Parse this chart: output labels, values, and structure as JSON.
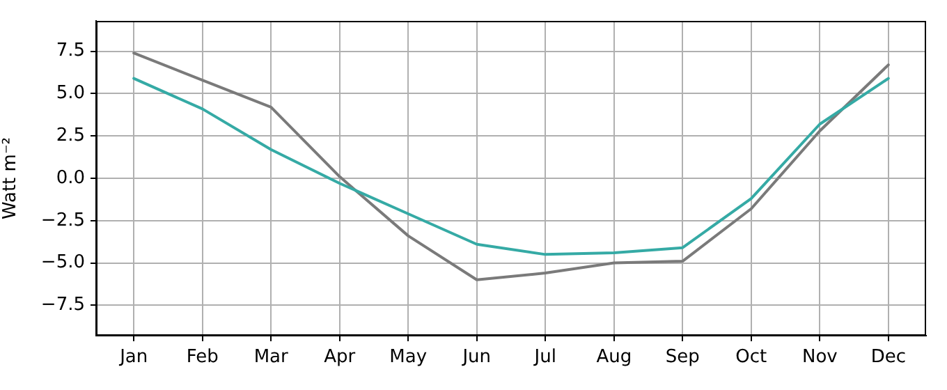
{
  "chart_data": {
    "type": "line",
    "ylabel": "Watt m⁻²",
    "categories": [
      "Jan",
      "Feb",
      "Mar",
      "Apr",
      "May",
      "Jun",
      "Jul",
      "Aug",
      "Sep",
      "Oct",
      "Nov",
      "Dec"
    ],
    "ylim": [
      -9.3,
      9.3
    ],
    "yticks": [
      {
        "value": -7.5,
        "label": "−7.5"
      },
      {
        "value": -5,
        "label": "−5.0"
      },
      {
        "value": -2.5,
        "label": "−2.5"
      },
      {
        "value": 0,
        "label": "0.0"
      },
      {
        "value": 2.5,
        "label": "2.5"
      },
      {
        "value": 5,
        "label": "5.0"
      },
      {
        "value": 7.5,
        "label": "7.5"
      }
    ],
    "grid": true,
    "series": [
      {
        "color": "#7a7a7a",
        "values": [
          7.4,
          5.8,
          4.2,
          0.1,
          -3.4,
          -6.0,
          -5.6,
          -5.0,
          -4.9,
          -1.8,
          2.8,
          6.7
        ]
      },
      {
        "color": "#35aaa5",
        "values": [
          5.9,
          4.1,
          1.7,
          -0.3,
          -2.1,
          -3.9,
          -4.5,
          -4.4,
          -4.1,
          -1.2,
          3.2,
          5.9
        ]
      }
    ]
  }
}
